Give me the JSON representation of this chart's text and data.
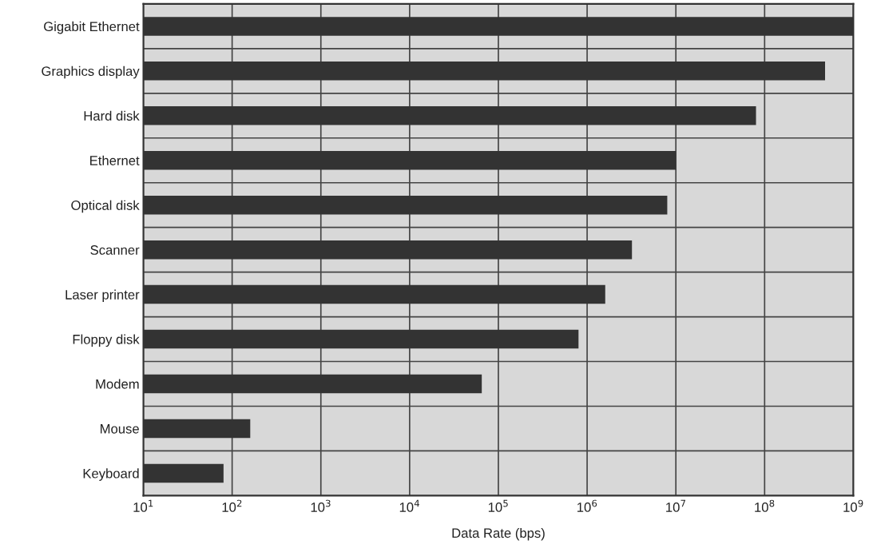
{
  "chart_data": {
    "type": "bar",
    "orientation": "horizontal",
    "log": "x",
    "xlabel": "Data Rate (bps)",
    "categories": [
      "Gigabit Ethernet",
      "Graphics display",
      "Hard disk",
      "Ethernet",
      "Optical disk",
      "Scanner",
      "Laser printer",
      "Floppy disk",
      "Modem",
      "Mouse",
      "Keyboard"
    ],
    "values": [
      1000000000,
      480000000,
      80000000,
      10000000,
      8000000,
      3200000,
      1600000,
      800000,
      65000,
      160,
      80
    ],
    "color": "#333333",
    "xlim": [
      10,
      1000000000
    ],
    "xticks": [
      {
        "value": 10,
        "label": "10$^{1}$"
      },
      {
        "value": 100,
        "label": "10$^{2}$"
      },
      {
        "value": 1000,
        "label": "10$^{3}$"
      },
      {
        "value": 10000,
        "label": "10$^{4}$"
      },
      {
        "value": 100000,
        "label": "10$^{5}$"
      },
      {
        "value": 1000000,
        "label": "10$^{6}$"
      },
      {
        "value": 10000000,
        "label": "10$^{7}$"
      },
      {
        "value": 100000000,
        "label": "10$^{8}$"
      },
      {
        "value": 1000000000,
        "label": "10$^{9}$"
      }
    ],
    "grid": true
  }
}
